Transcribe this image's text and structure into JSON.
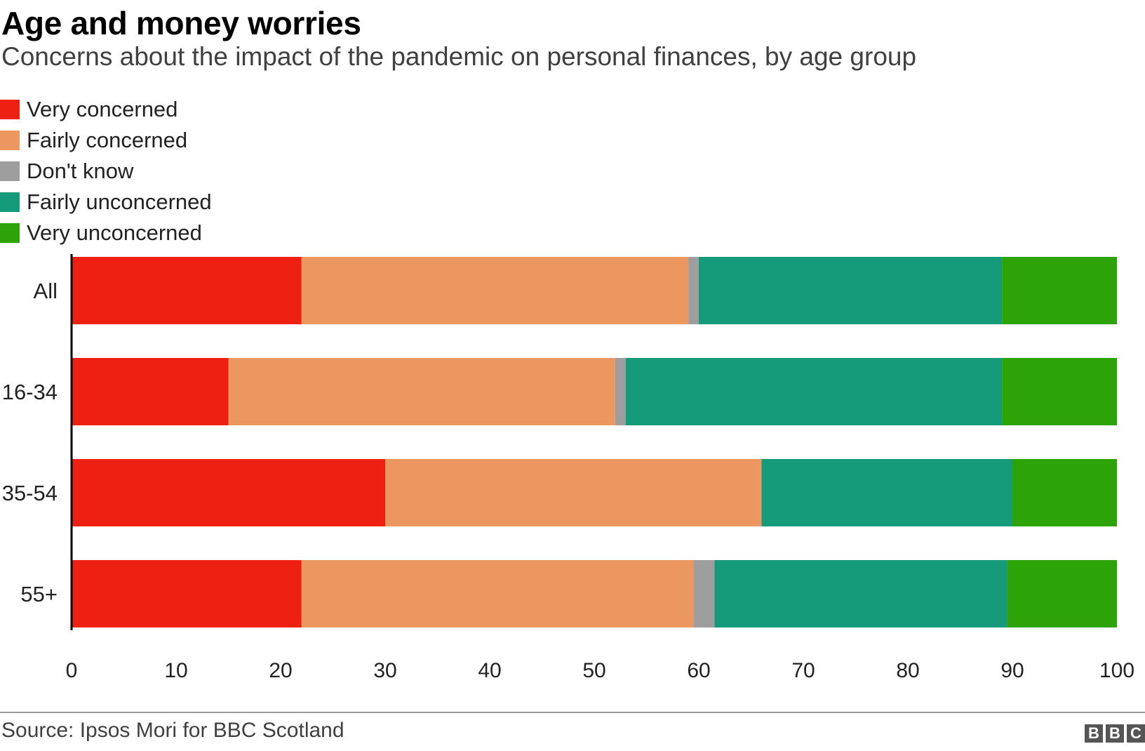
{
  "header": {
    "title": "Age and money worries",
    "subtitle": "Concerns about the impact of the pandemic on personal finances, by age group"
  },
  "chart_data": {
    "type": "bar",
    "orientation": "horizontal",
    "stacked": true,
    "title": "Age and money worries",
    "subtitle": "Concerns about the impact of the pandemic on personal finances, by age group",
    "xlabel": "",
    "ylabel": "",
    "xlim": [
      0,
      100
    ],
    "xticks": [
      0,
      10,
      20,
      30,
      40,
      50,
      60,
      70,
      80,
      90,
      100
    ],
    "grid": false,
    "legend_position": "top-left",
    "categories": [
      "All",
      "16-34",
      "35-54",
      "55+"
    ],
    "series": [
      {
        "name": "Very concerned",
        "color": "#ee2011",
        "values": [
          22,
          15,
          30,
          22
        ]
      },
      {
        "name": "Fairly concerned",
        "color": "#eb975f",
        "values": [
          37,
          37,
          36,
          37.5
        ]
      },
      {
        "name": "Don't know",
        "color": "#9e9e9e",
        "values": [
          1,
          1,
          0,
          2
        ]
      },
      {
        "name": "Fairly unconcerned",
        "color": "#159b7a",
        "values": [
          29,
          36,
          24,
          28
        ]
      },
      {
        "name": "Very unconcerned",
        "color": "#2ca306",
        "values": [
          11,
          11,
          10,
          10.5
        ]
      }
    ]
  },
  "footer": {
    "source": "Source: Ipsos Mori for BBC Scotland",
    "logo_letters": [
      "B",
      "B",
      "C"
    ]
  }
}
